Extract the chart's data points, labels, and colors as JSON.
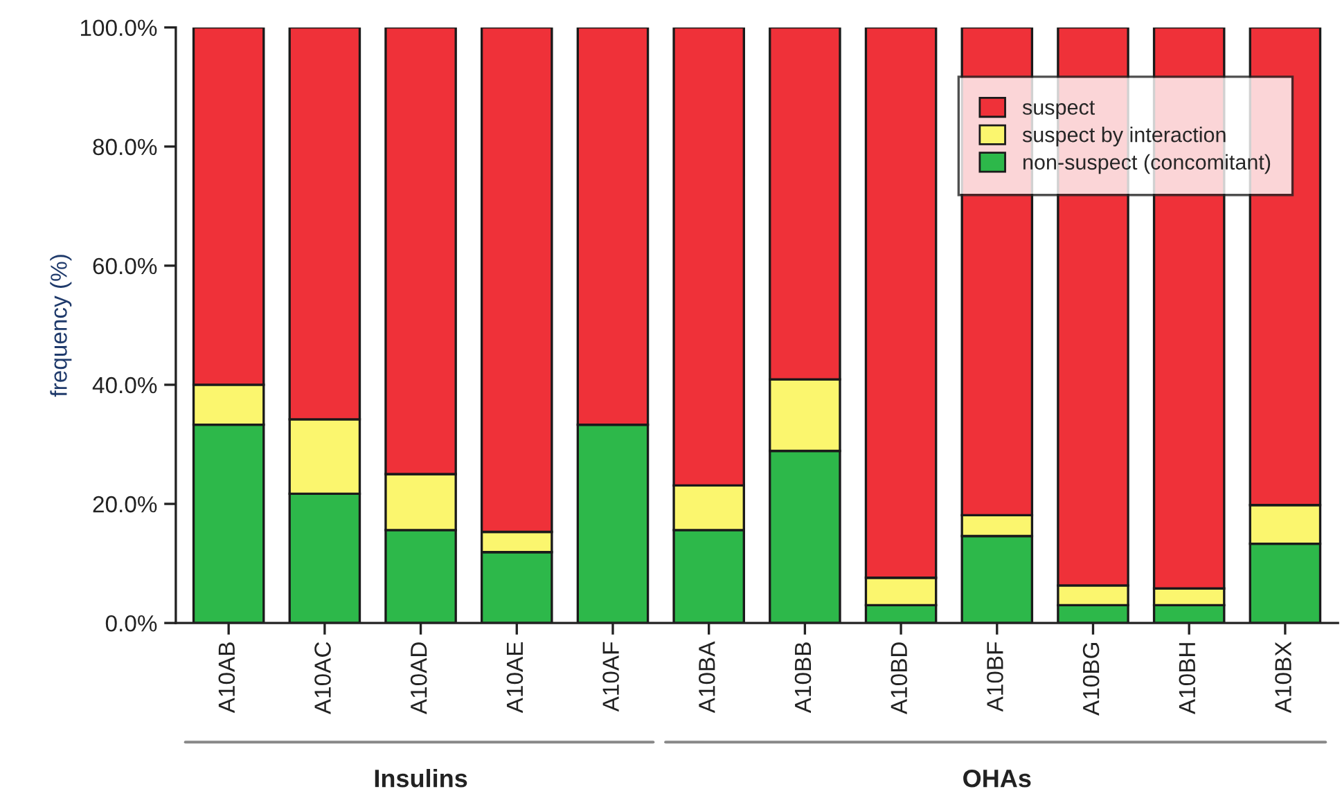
{
  "chart_data": {
    "type": "bar",
    "stacked": true,
    "ylabel": "frequency (%)",
    "categories": [
      "A10AB",
      "A10AC",
      "A10AD",
      "A10AE",
      "A10AF",
      "A10BA",
      "A10BB",
      "A10BD",
      "A10BF",
      "A10BG",
      "A10BH",
      "A10BX"
    ],
    "series": [
      {
        "name": "non-suspect (concomitant)",
        "color": "#2db84a",
        "values": [
          33.3,
          21.7,
          15.6,
          11.9,
          33.3,
          15.6,
          28.9,
          3.0,
          14.6,
          3.0,
          3.0,
          13.3
        ]
      },
      {
        "name": "suspect by interaction",
        "color": "#fbf66e",
        "values": [
          6.7,
          12.5,
          9.4,
          3.4,
          0,
          7.5,
          12.0,
          4.6,
          3.5,
          3.3,
          2.8,
          6.5
        ]
      },
      {
        "name": "suspect",
        "color": "#ef3139",
        "values": [
          60.0,
          65.8,
          75.0,
          84.7,
          66.7,
          76.9,
          59.1,
          92.4,
          81.9,
          93.7,
          94.2,
          80.2
        ]
      }
    ],
    "ylim": [
      0,
      100
    ],
    "yticks": [
      {
        "value": 0,
        "label": "0.0%"
      },
      {
        "value": 20,
        "label": "20.0%"
      },
      {
        "value": 40,
        "label": "40.0%"
      },
      {
        "value": 60,
        "label": "60.0%"
      },
      {
        "value": 80,
        "label": "80.0%"
      },
      {
        "value": 100,
        "label": "100.0%"
      }
    ],
    "legend": "top right",
    "grid": false,
    "annotations": [
      "Insulins",
      "OHAs"
    ]
  }
}
